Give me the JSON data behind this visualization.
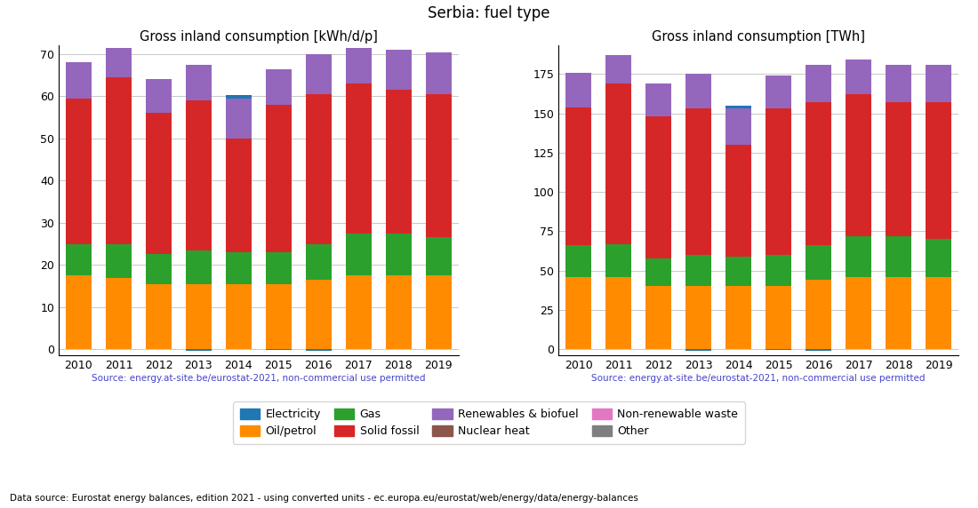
{
  "years": [
    2010,
    2011,
    2012,
    2013,
    2014,
    2015,
    2016,
    2017,
    2018,
    2019
  ],
  "title": "Serbia: fuel type",
  "left_title": "Gross inland consumption [kWh/d/p]",
  "right_title": "Gross inland consumption [TWh]",
  "source_text": "Source: energy.at-site.be/eurostat-2021, non-commercial use permitted",
  "bottom_text": "Data source: Eurostat energy balances, edition 2021 - using converted units - ec.europa.eu/eurostat/web/energy/data/energy-balances",
  "kwh_electricity": [
    0.0,
    0.0,
    0.0,
    -0.3,
    0.8,
    -0.1,
    -0.3,
    0.0,
    0.0,
    0.0
  ],
  "kwh_oil": [
    17.5,
    17.0,
    15.5,
    15.5,
    15.5,
    15.5,
    16.5,
    17.5,
    17.5,
    17.5
  ],
  "kwh_gas": [
    7.5,
    8.0,
    7.0,
    8.0,
    7.5,
    7.5,
    8.5,
    10.0,
    10.0,
    9.0
  ],
  "kwh_solid": [
    34.5,
    39.5,
    33.5,
    35.5,
    27.0,
    35.0,
    35.5,
    35.5,
    34.0,
    34.0
  ],
  "kwh_nuclear": [
    0.0,
    0.0,
    0.0,
    0.0,
    0.0,
    0.0,
    0.0,
    0.0,
    0.0,
    0.0
  ],
  "kwh_renewables": [
    8.5,
    7.0,
    8.0,
    8.5,
    9.5,
    8.5,
    9.5,
    8.5,
    9.5,
    10.0
  ],
  "kwh_nonren_waste": [
    0.0,
    0.0,
    0.0,
    0.0,
    0.0,
    0.0,
    0.0,
    0.0,
    0.0,
    0.0
  ],
  "kwh_other": [
    0.0,
    0.0,
    0.0,
    0.0,
    0.0,
    0.0,
    0.0,
    0.0,
    0.0,
    0.0
  ],
  "twh_electricity": [
    0.0,
    0.0,
    0.0,
    -0.8,
    2.0,
    -0.3,
    -0.8,
    0.0,
    0.0,
    0.0
  ],
  "twh_oil": [
    46,
    46,
    40,
    40,
    40,
    40,
    44,
    46,
    46,
    46
  ],
  "twh_gas": [
    20,
    21,
    18,
    20,
    19,
    20,
    22,
    26,
    26,
    24
  ],
  "twh_solid": [
    88,
    102,
    90,
    93,
    71,
    93,
    91,
    90,
    85,
    87
  ],
  "twh_nuclear": [
    0,
    0,
    0,
    0,
    0,
    0,
    0,
    0,
    0,
    0
  ],
  "twh_renewables": [
    22,
    18,
    21,
    22,
    23,
    21,
    24,
    22,
    24,
    24
  ],
  "twh_nonren_waste": [
    0,
    0,
    0,
    0,
    0,
    0,
    0,
    0,
    0,
    0
  ],
  "twh_other": [
    0,
    0,
    0,
    0,
    0,
    0,
    0,
    0,
    0,
    0
  ],
  "colors": {
    "electricity": "#1f77b4",
    "oil": "#ff8c00",
    "gas": "#2ca02c",
    "solid": "#d62728",
    "nuclear": "#8c564b",
    "renewables": "#9467bd",
    "nonren_waste": "#e377c2",
    "other": "#7f7f7f"
  }
}
